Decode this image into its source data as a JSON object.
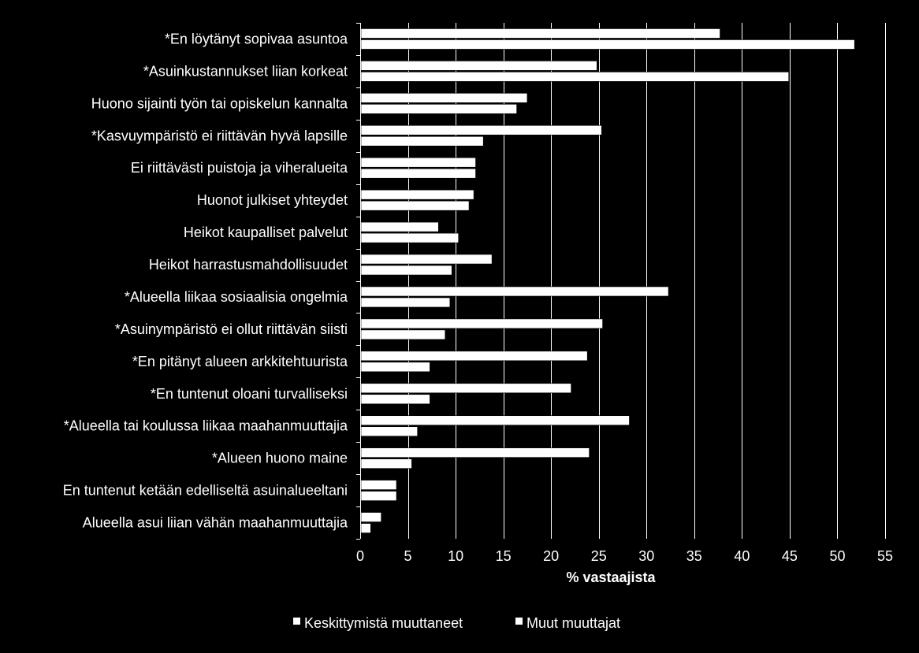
{
  "chart_data": {
    "type": "bar",
    "orientation": "horizontal",
    "categories": [
      "*En löytänyt sopivaa asuntoa",
      "*Asuinkustannukset liian korkeat",
      "Huono sijainti työn tai opiskelun kannalta",
      "*Kasvuympäristö ei riittävän hyvä lapsille",
      "Ei riittävästi puistoja ja viheralueita",
      "Huonot julkiset yhteydet",
      "Heikot kaupalliset palvelut",
      "Heikot harrastusmahdollisuudet",
      "*Alueella liikaa sosiaalisia ongelmia",
      "*Asuinympäristö ei ollut riittävän siisti",
      "*En pitänyt alueen arkkitehtuurista",
      "*En tuntenut oloani turvalliseksi",
      "*Alueella tai koulussa liikaa maahanmuuttajia",
      "*Alueen huono maine",
      "En tuntenut ketään edelliseltä asuinalueeltani",
      "Alueella asui liian vähän maahanmuuttajia"
    ],
    "series": [
      {
        "name": "Keskittymistä muuttaneet",
        "color": "#ffffff",
        "values": [
          37.7,
          24.8,
          17.5,
          25.3,
          12.1,
          11.9,
          8.2,
          13.8,
          32.3,
          25.4,
          23.8,
          22.1,
          28.2,
          24.0,
          3.8,
          2.2
        ]
      },
      {
        "name": "Muut muuttajat",
        "color": "#ffffff",
        "values": [
          51.8,
          44.9,
          16.4,
          12.9,
          12.1,
          11.4,
          10.3,
          9.6,
          9.4,
          8.9,
          7.3,
          7.3,
          6.0,
          5.4,
          3.8,
          1.1
        ]
      }
    ],
    "xlabel": "% vastaajista",
    "xlim": [
      0,
      55
    ],
    "xticks": [
      0,
      5,
      10,
      15,
      20,
      25,
      30,
      35,
      40,
      45,
      50,
      55
    ],
    "grid": "vertical",
    "legend_position": "bottom"
  }
}
